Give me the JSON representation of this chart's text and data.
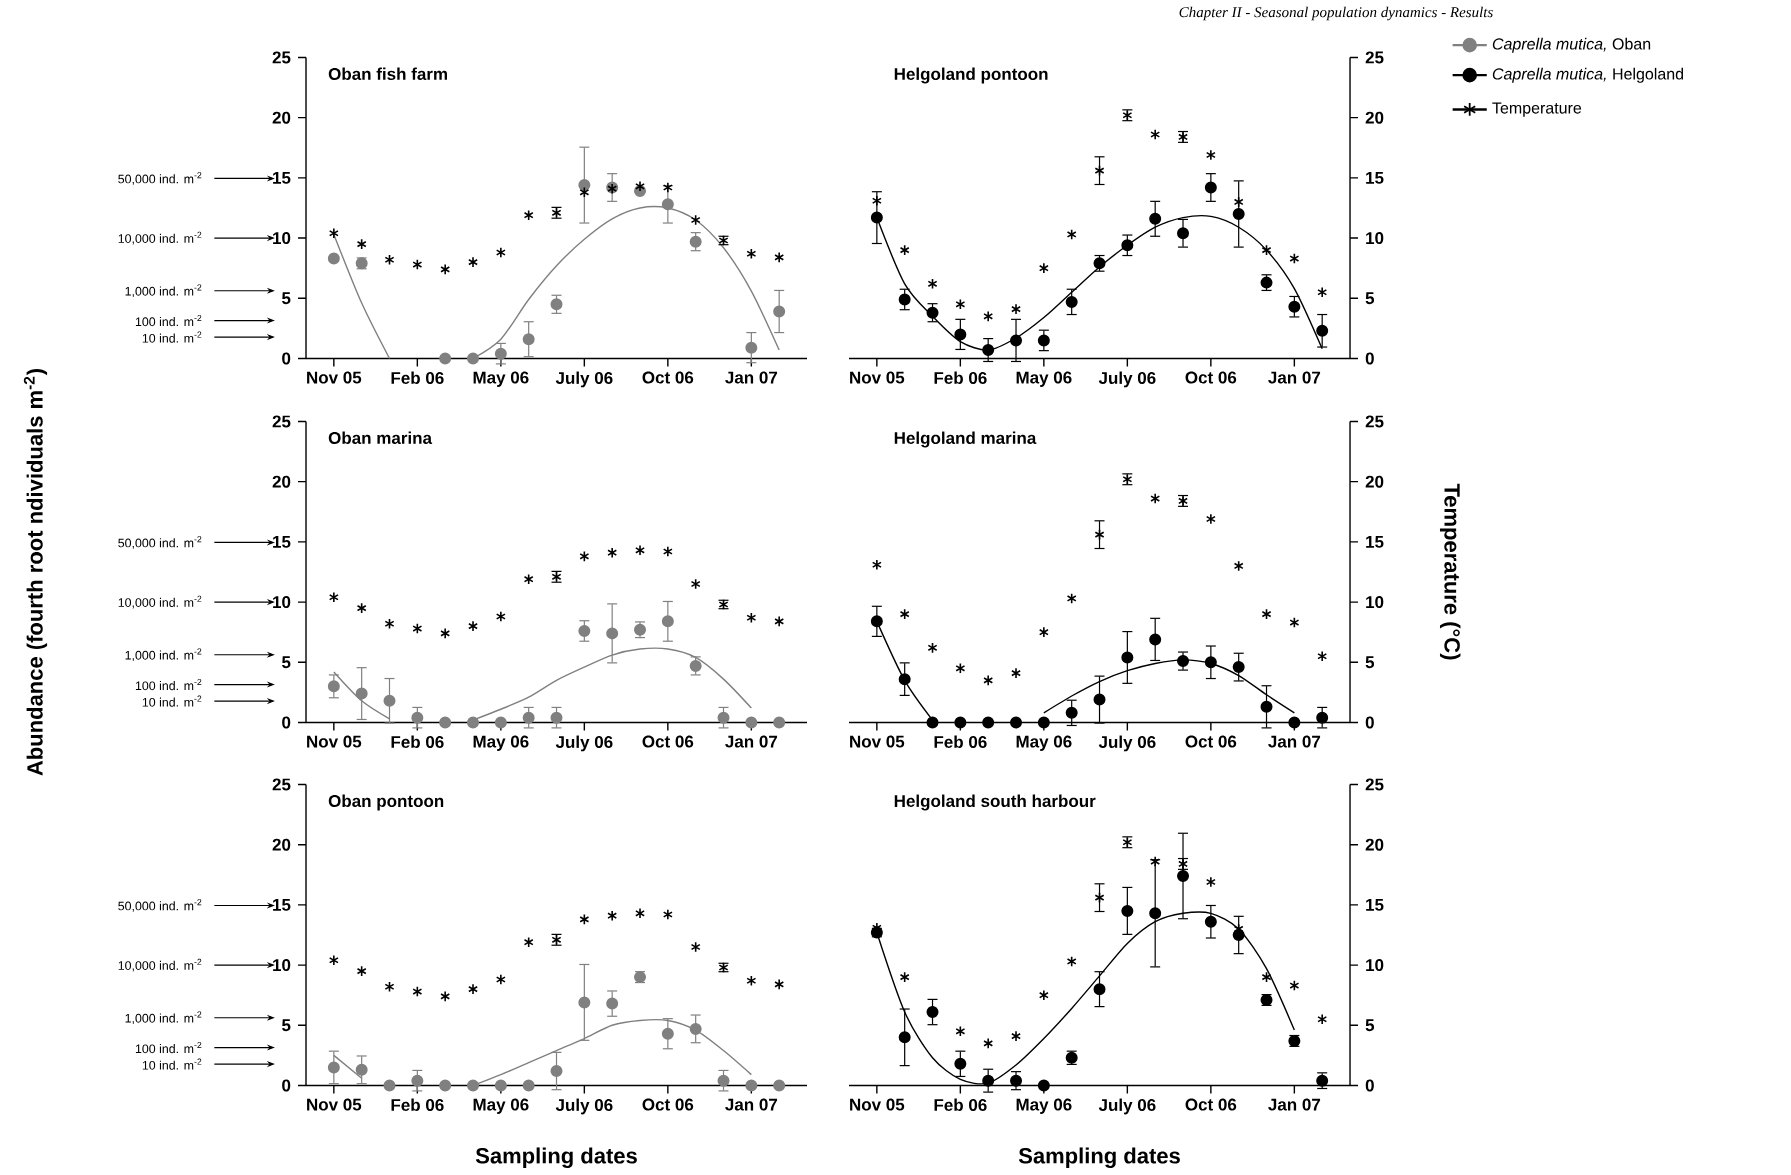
{
  "chart_data": [
    {
      "type": "scatter",
      "title": "Oban fish farm",
      "legend": "top right",
      "categories": [
        "Nov 05",
        null,
        null,
        "Feb 06",
        null,
        null,
        "May 06",
        null,
        null,
        "July 06",
        null,
        null,
        "Oct 06",
        null,
        null,
        "Jan 07",
        null
      ],
      "ylim": [
        0,
        25
      ],
      "yticks": [
        0,
        5,
        10,
        15,
        20,
        25
      ],
      "series": [
        {
          "name": "*Caprella mutica,* Oban",
          "marker": "circle",
          "color": "#808080",
          "values": [
            8.3,
            7.9,
            null,
            null,
            0,
            0,
            0.4,
            1.6,
            4.5,
            14.4,
            14.2,
            13.9,
            12.8,
            9.7,
            null,
            0.9,
            3.9
          ],
          "errors": [
            null,
            0.5,
            null,
            null,
            null,
            null,
            0.9,
            1.5,
            0.8,
            3.2,
            1.2,
            null,
            1.6,
            0.8,
            null,
            1.3,
            1.8
          ]
        },
        {
          "type": "line",
          "marker": "none",
          "color": "#808080",
          "values": [
            10.3,
            4.6,
            0,
            null,
            null,
            0,
            1.6,
            4.9,
            7.7,
            9.9,
            11.6,
            12.5,
            12.5,
            11.5,
            9.2,
            5.6,
            0.7
          ]
        },
        {
          "marker": "cross",
          "color": "#000000",
          "values": [
            10.4,
            9.5,
            8.2,
            7.8,
            7.4,
            8.0,
            8.8,
            11.9,
            12.1,
            13.8,
            14.1,
            14.3,
            14.2,
            11.5,
            9.8,
            8.7,
            8.4
          ],
          "errors": [
            null,
            null,
            null,
            null,
            null,
            null,
            null,
            null,
            0.5,
            null,
            null,
            null,
            null,
            null,
            0.4,
            null,
            null
          ]
        }
      ],
      "annotations": [
        "50,000 ind. m$^{-2}$",
        "10,000 ind. m$^{-2}$",
        "1,000 ind. m$^{-2}$",
        "100 ind. m$^{-2}$",
        "10 ind. m$^{-2}$"
      ]
    },
    {
      "type": "scatter",
      "title": "Helgoland pontoon",
      "categories": [
        "Nov 05",
        null,
        null,
        "Feb 06",
        null,
        null,
        "May 06",
        null,
        null,
        "July 06",
        null,
        null,
        "Oct 06",
        null,
        null,
        "Jan 07",
        null
      ],
      "y2lim": [
        0,
        25
      ],
      "y2ticks": [
        0,
        5,
        10,
        15,
        20,
        25
      ],
      "legend": "top right",
      "series": [
        {
          "name": "*Caprella mutica,* Helgoland",
          "marker": "circle",
          "color": "#000000",
          "axis": "y2",
          "values": [
            11.7,
            4.9,
            3.8,
            2.0,
            0.7,
            1.5,
            1.5,
            4.7,
            7.9,
            9.4,
            11.6,
            10.4,
            14.2,
            12.0,
            6.3,
            4.3,
            2.3
          ],
          "errors": [
            2.2,
            0.9,
            0.8,
            1.3,
            1.0,
            1.8,
            0.9,
            1.1,
            0.7,
            0.9,
            1.5,
            1.2,
            1.2,
            2.8,
            0.7,
            0.9,
            1.4
          ]
        },
        {
          "type": "line",
          "marker": "none",
          "color": "#000000",
          "axis": "y2",
          "values": [
            11.7,
            6.2,
            3.5,
            1.4,
            0.7,
            1.7,
            3.4,
            5.5,
            7.6,
            9.4,
            10.9,
            11.7,
            11.8,
            10.9,
            9.0,
            5.8,
            0.8
          ]
        },
        {
          "name": "Temperature",
          "marker": "cross",
          "color": "#000000",
          "axis": "y2",
          "values": [
            13.1,
            9.0,
            6.2,
            4.5,
            3.5,
            4.1,
            7.5,
            10.3,
            15.6,
            20.2,
            18.6,
            18.4,
            16.9,
            13.0,
            9.0,
            8.3,
            5.5
          ],
          "errors": [
            null,
            null,
            null,
            null,
            null,
            null,
            null,
            null,
            1.2,
            0.5,
            null,
            0.5,
            null,
            null,
            null,
            null,
            null
          ]
        }
      ],
      "annotations": [
        "*Chapter II - Seasonal population dynamics - Results*"
      ]
    },
    {
      "type": "scatter",
      "title": "Oban marina",
      "ylabel": "Abundance (fourth root ndividuals m$^{-2}$)",
      "categories": [
        "Nov 05",
        null,
        null,
        "Feb 06",
        null,
        null,
        "May 06",
        null,
        null,
        "July 06",
        null,
        null,
        "Oct 06",
        null,
        null,
        "Jan 07",
        null
      ],
      "ylim": [
        0,
        25
      ],
      "yticks": [
        0,
        5,
        10,
        15,
        20,
        25
      ],
      "series": [
        {
          "marker": "circle",
          "color": "#808080",
          "values": [
            3.0,
            2.4,
            1.8,
            0.4,
            0,
            0,
            0,
            0.4,
            0.4,
            7.6,
            7.4,
            7.7,
            8.4,
            4.7,
            0.4,
            0,
            0
          ],
          "errors": [
            1.0,
            2.2,
            1.9,
            0.9,
            null,
            null,
            null,
            0.9,
            0.9,
            0.9,
            2.5,
            0.7,
            1.7,
            0.8,
            0.9,
            null,
            null
          ]
        },
        {
          "type": "line",
          "marker": "none",
          "color": "#808080",
          "values": [
            4.2,
            1.8,
            0.3,
            null,
            null,
            0.2,
            1.1,
            2.1,
            3.5,
            4.6,
            5.6,
            6.1,
            6.1,
            5.4,
            3.6,
            1.2,
            null
          ]
        },
        {
          "marker": "cross",
          "color": "#000000",
          "values": [
            10.4,
            9.5,
            8.2,
            7.8,
            7.4,
            8.0,
            8.8,
            11.9,
            12.1,
            13.8,
            14.1,
            14.3,
            14.2,
            11.5,
            9.8,
            8.7,
            8.4
          ],
          "errors": [
            null,
            null,
            null,
            null,
            null,
            null,
            null,
            null,
            0.5,
            null,
            null,
            null,
            null,
            null,
            0.4,
            null,
            null
          ]
        }
      ],
      "annotations": [
        "50,000 ind. m$^{-2}$",
        "10,000 ind. m$^{-2}$",
        "1,000 ind. m$^{-2}$",
        "100 ind. m$^{-2}$",
        "10 ind. m$^{-2}$"
      ]
    },
    {
      "type": "scatter",
      "title": "Helgoland marina",
      "y2label": "Temperature (°C)",
      "categories": [
        "Nov 05",
        null,
        null,
        "Feb 06",
        null,
        null,
        "May 06",
        null,
        null,
        "July 06",
        null,
        null,
        "Oct 06",
        null,
        null,
        "Jan 07",
        null
      ],
      "y2lim": [
        0,
        25
      ],
      "y2ticks": [
        0,
        5,
        10,
        15,
        20,
        25
      ],
      "series": [
        {
          "marker": "circle",
          "color": "#000000",
          "axis": "y2",
          "values": [
            8.4,
            3.6,
            0,
            0,
            0,
            0,
            0,
            0.8,
            1.9,
            5.4,
            6.9,
            5.1,
            5.0,
            4.6,
            1.3,
            0,
            0.4
          ],
          "errors": [
            1.3,
            1.4,
            null,
            null,
            null,
            null,
            null,
            1.1,
            2.0,
            2.2,
            1.8,
            0.8,
            1.4,
            1.2,
            1.8,
            null,
            0.9
          ]
        },
        {
          "type": "line",
          "marker": "none",
          "color": "#000000",
          "axis": "y2",
          "values": [
            8.4,
            3.5,
            0.2,
            null,
            null,
            null,
            0.8,
            2.2,
            3.4,
            4.3,
            4.9,
            5.2,
            4.9,
            3.9,
            2.3,
            0.8,
            null
          ]
        },
        {
          "marker": "cross",
          "color": "#000000",
          "axis": "y2",
          "values": [
            13.1,
            9.0,
            6.2,
            4.5,
            3.5,
            4.1,
            7.5,
            10.3,
            15.6,
            20.2,
            18.6,
            18.4,
            16.9,
            13.0,
            9.0,
            8.3,
            5.5
          ],
          "errors": [
            null,
            null,
            null,
            null,
            null,
            null,
            null,
            null,
            1.2,
            0.5,
            null,
            0.5,
            null,
            null,
            null,
            null,
            null
          ]
        }
      ]
    },
    {
      "type": "scatter",
      "title": "Oban pontoon",
      "xlabel": "Sampling dates",
      "categories": [
        "Nov 05",
        null,
        null,
        "Feb 06",
        null,
        null,
        "May 06",
        null,
        null,
        "July 06",
        null,
        null,
        "Oct 06",
        null,
        null,
        "Jan 07",
        null
      ],
      "ylim": [
        0,
        25
      ],
      "yticks": [
        0,
        5,
        10,
        15,
        20,
        25
      ],
      "series": [
        {
          "marker": "circle",
          "color": "#808080",
          "values": [
            1.5,
            1.3,
            0,
            0.4,
            0,
            0,
            0,
            0,
            1.2,
            6.9,
            6.8,
            9.0,
            4.3,
            4.7,
            0.4,
            0,
            0
          ],
          "errors": [
            1.4,
            1.2,
            null,
            0.9,
            null,
            null,
            null,
            null,
            1.6,
            3.2,
            1.1,
            0.5,
            1.3,
            1.2,
            0.9,
            null,
            null
          ]
        },
        {
          "type": "line",
          "marker": "none",
          "color": "#808080",
          "values": [
            2.5,
            0.6,
            null,
            null,
            null,
            0,
            0.9,
            1.9,
            2.9,
            3.9,
            5.0,
            5.4,
            5.4,
            4.6,
            2.9,
            0.9,
            null
          ]
        },
        {
          "marker": "cross",
          "color": "#000000",
          "values": [
            10.4,
            9.5,
            8.2,
            7.8,
            7.4,
            8.0,
            8.8,
            11.9,
            12.1,
            13.8,
            14.1,
            14.3,
            14.2,
            11.5,
            9.8,
            8.7,
            8.4
          ],
          "errors": [
            null,
            null,
            null,
            null,
            null,
            null,
            null,
            null,
            0.5,
            null,
            null,
            null,
            null,
            null,
            0.4,
            null,
            null
          ]
        }
      ],
      "annotations": [
        "50,000 ind. m$^{-2}$",
        "10,000 ind. m$^{-2}$",
        "1,000 ind. m$^{-2}$",
        "100 ind. m$^{-2}$",
        "10 ind. m$^{-2}$"
      ]
    },
    {
      "type": "scatter",
      "title": "Helgoland south harbour",
      "xlabel": "Sampling dates",
      "categories": [
        "Nov 05",
        null,
        null,
        "Feb 06",
        null,
        null,
        "May 06",
        null,
        null,
        "July 06",
        null,
        null,
        "Oct 06",
        null,
        null,
        "Jan 07",
        null
      ],
      "y2lim": [
        0,
        25
      ],
      "y2ticks": [
        0,
        5,
        10,
        15,
        20,
        25
      ],
      "series": [
        {
          "marker": "circle",
          "color": "#000000",
          "axis": "y2",
          "values": [
            12.7,
            4.0,
            6.1,
            1.8,
            0.4,
            0.4,
            0,
            2.3,
            8.0,
            14.5,
            14.3,
            17.4,
            13.6,
            12.5,
            7.1,
            3.7,
            0.4
          ],
          "errors": [
            0.4,
            2.4,
            1.1,
            1.1,
            1.0,
            0.8,
            null,
            0.6,
            1.5,
            2.0,
            4.5,
            3.6,
            1.4,
            1.6,
            0.5,
            0.5,
            0.7
          ]
        },
        {
          "type": "line",
          "marker": "none",
          "color": "#000000",
          "axis": "y2",
          "values": [
            12.7,
            6.1,
            2.3,
            0.5,
            0.2,
            1.7,
            3.9,
            6.4,
            9.1,
            11.8,
            13.6,
            14.3,
            14.3,
            13.0,
            9.7,
            4.6,
            null
          ]
        },
        {
          "marker": "cross",
          "color": "#000000",
          "axis": "y2",
          "values": [
            13.1,
            9.0,
            6.2,
            4.5,
            3.5,
            4.1,
            7.5,
            10.3,
            15.6,
            20.2,
            18.6,
            18.4,
            16.9,
            13.0,
            9.0,
            8.3,
            5.5
          ],
          "errors": [
            null,
            null,
            null,
            null,
            null,
            null,
            null,
            null,
            1.2,
            0.5,
            null,
            0.5,
            null,
            null,
            null,
            null,
            null
          ]
        }
      ]
    }
  ]
}
